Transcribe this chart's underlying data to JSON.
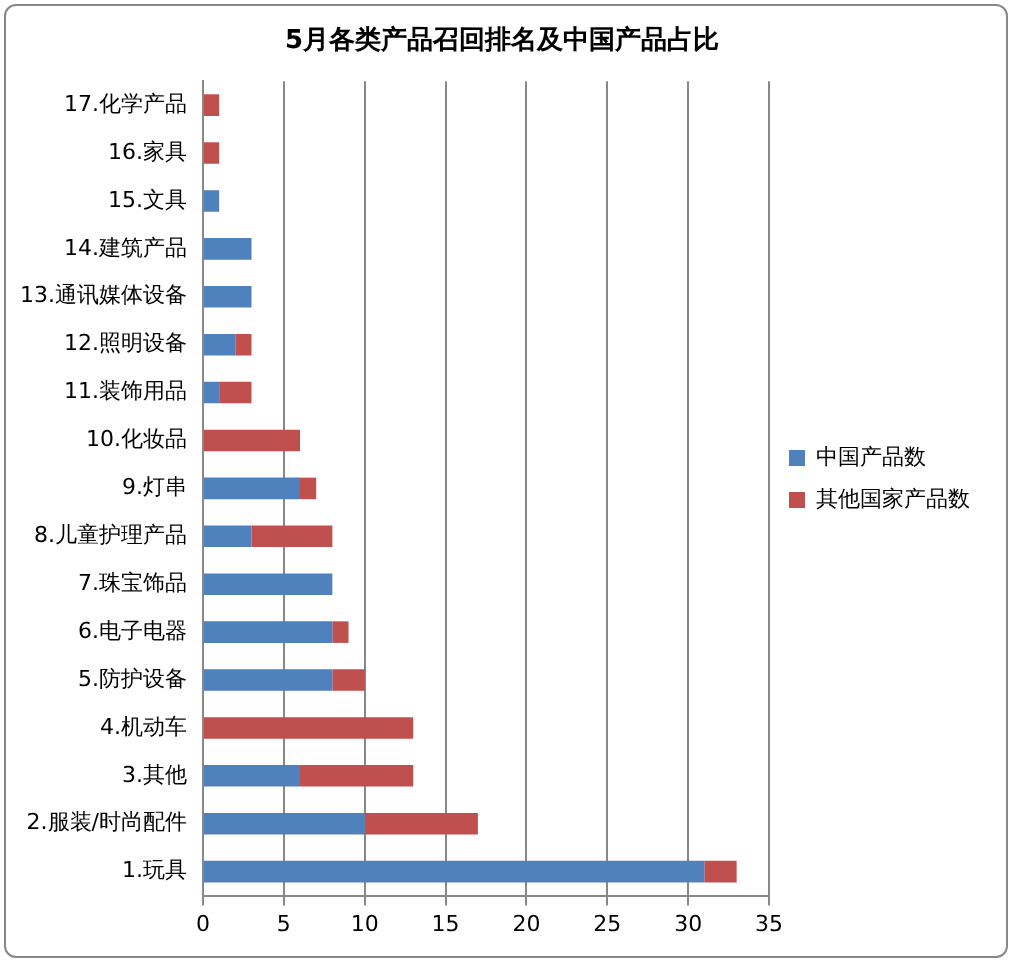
{
  "chart_data": {
    "type": "bar",
    "orientation": "horizontal",
    "stacked": true,
    "title": "5月各类产品召回排名及中国产品占比",
    "categories": [
      "17.化学产品",
      "16.家具",
      "15.文具",
      "14.建筑产品",
      "13.通讯媒体设备",
      "12.照明设备",
      "11.装饰用品",
      "10.化妆品",
      "9.灯串",
      "8.儿童护理产品",
      "7.珠宝饰品",
      "6.电子电器",
      "5.防护设备",
      "4.机动车",
      "3.其他",
      "2.服装/时尚配件",
      "1.玩具"
    ],
    "series": [
      {
        "name": "中国产品数",
        "color": "#4f81bd",
        "values": [
          0,
          0,
          1,
          3,
          3,
          2,
          1,
          0,
          6,
          3,
          8,
          8,
          8,
          0,
          6,
          10,
          31
        ]
      },
      {
        "name": "其他国家产品数",
        "color": "#c0504d",
        "values": [
          1,
          1,
          0,
          0,
          0,
          1,
          2,
          6,
          1,
          5,
          0,
          1,
          2,
          13,
          7,
          7,
          2
        ]
      }
    ],
    "xlim": [
      0,
      35
    ],
    "xticks": [
      0,
      5,
      10,
      15,
      20,
      25,
      30,
      35
    ],
    "grid": "x",
    "legend": "right"
  }
}
